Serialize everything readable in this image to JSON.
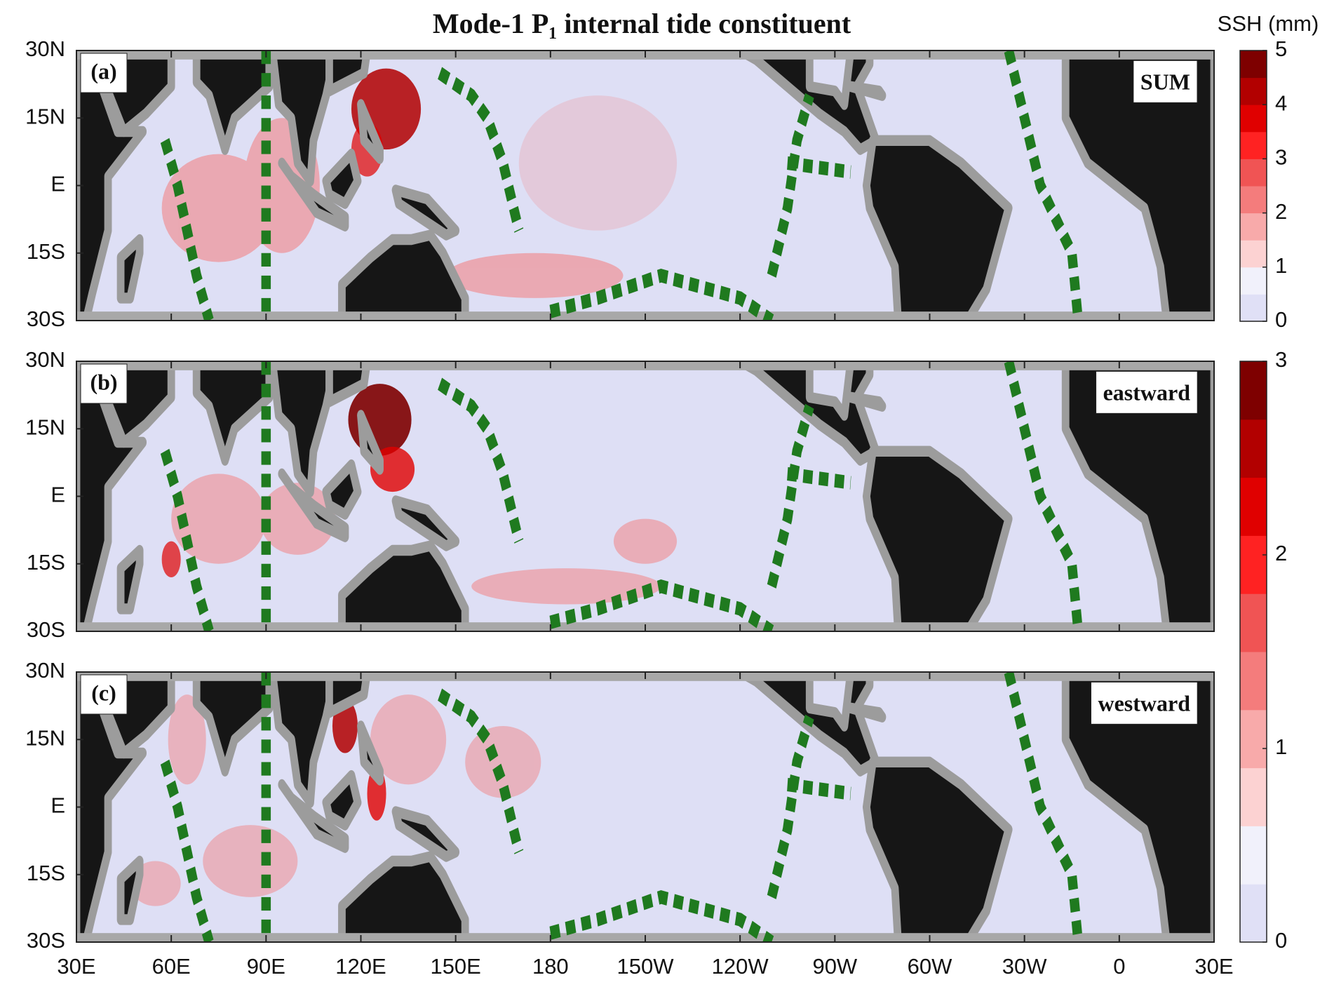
{
  "chart_data": {
    "type": "map",
    "title": "Mode-1 P₁ internal tide constituent",
    "xlim": [
      30,
      390
    ],
    "ylim": [
      -30,
      30
    ],
    "xticks": [
      {
        "value": 30,
        "label": "30E"
      },
      {
        "value": 60,
        "label": "60E"
      },
      {
        "value": 90,
        "label": "90E"
      },
      {
        "value": 120,
        "label": "120E"
      },
      {
        "value": 150,
        "label": "150E"
      },
      {
        "value": 180,
        "label": "180"
      },
      {
        "value": 210,
        "label": "150W"
      },
      {
        "value": 240,
        "label": "120W"
      },
      {
        "value": 270,
        "label": "90W"
      },
      {
        "value": 300,
        "label": "60W"
      },
      {
        "value": 330,
        "label": "30W"
      },
      {
        "value": 360,
        "label": "0"
      },
      {
        "value": 390,
        "label": "30E"
      }
    ],
    "yticks": [
      {
        "value": 30,
        "label": "30N"
      },
      {
        "value": 15,
        "label": "15N"
      },
      {
        "value": 0,
        "label": "E"
      },
      {
        "value": -15,
        "label": "15S"
      },
      {
        "value": -30,
        "label": "30S"
      }
    ],
    "panels": [
      {
        "label": "(a)",
        "name": "SUM"
      },
      {
        "label": "(b)",
        "name": "eastward"
      },
      {
        "label": "(c)",
        "name": "westward"
      }
    ],
    "colorbars": [
      {
        "title": "SSH (mm)",
        "lim": [
          0,
          5
        ],
        "ticks": [
          0,
          1,
          2,
          3,
          4,
          5
        ],
        "colors": [
          "#e0e0f6",
          "#f1f1fb",
          "#fcd2d2",
          "#f8aaaa",
          "#f47c7c",
          "#f05454",
          "#ff2222",
          "#e00000",
          "#b20000",
          "#7e0000"
        ]
      },
      {
        "lim": [
          0,
          3
        ],
        "ticks": [
          0,
          1,
          2,
          3
        ],
        "colors": [
          "#e0e0f6",
          "#f1f1fb",
          "#fcd2d2",
          "#f8aaaa",
          "#f47c7c",
          "#f05454",
          "#ff2222",
          "#e00000",
          "#b20000",
          "#7e0000"
        ]
      }
    ]
  }
}
